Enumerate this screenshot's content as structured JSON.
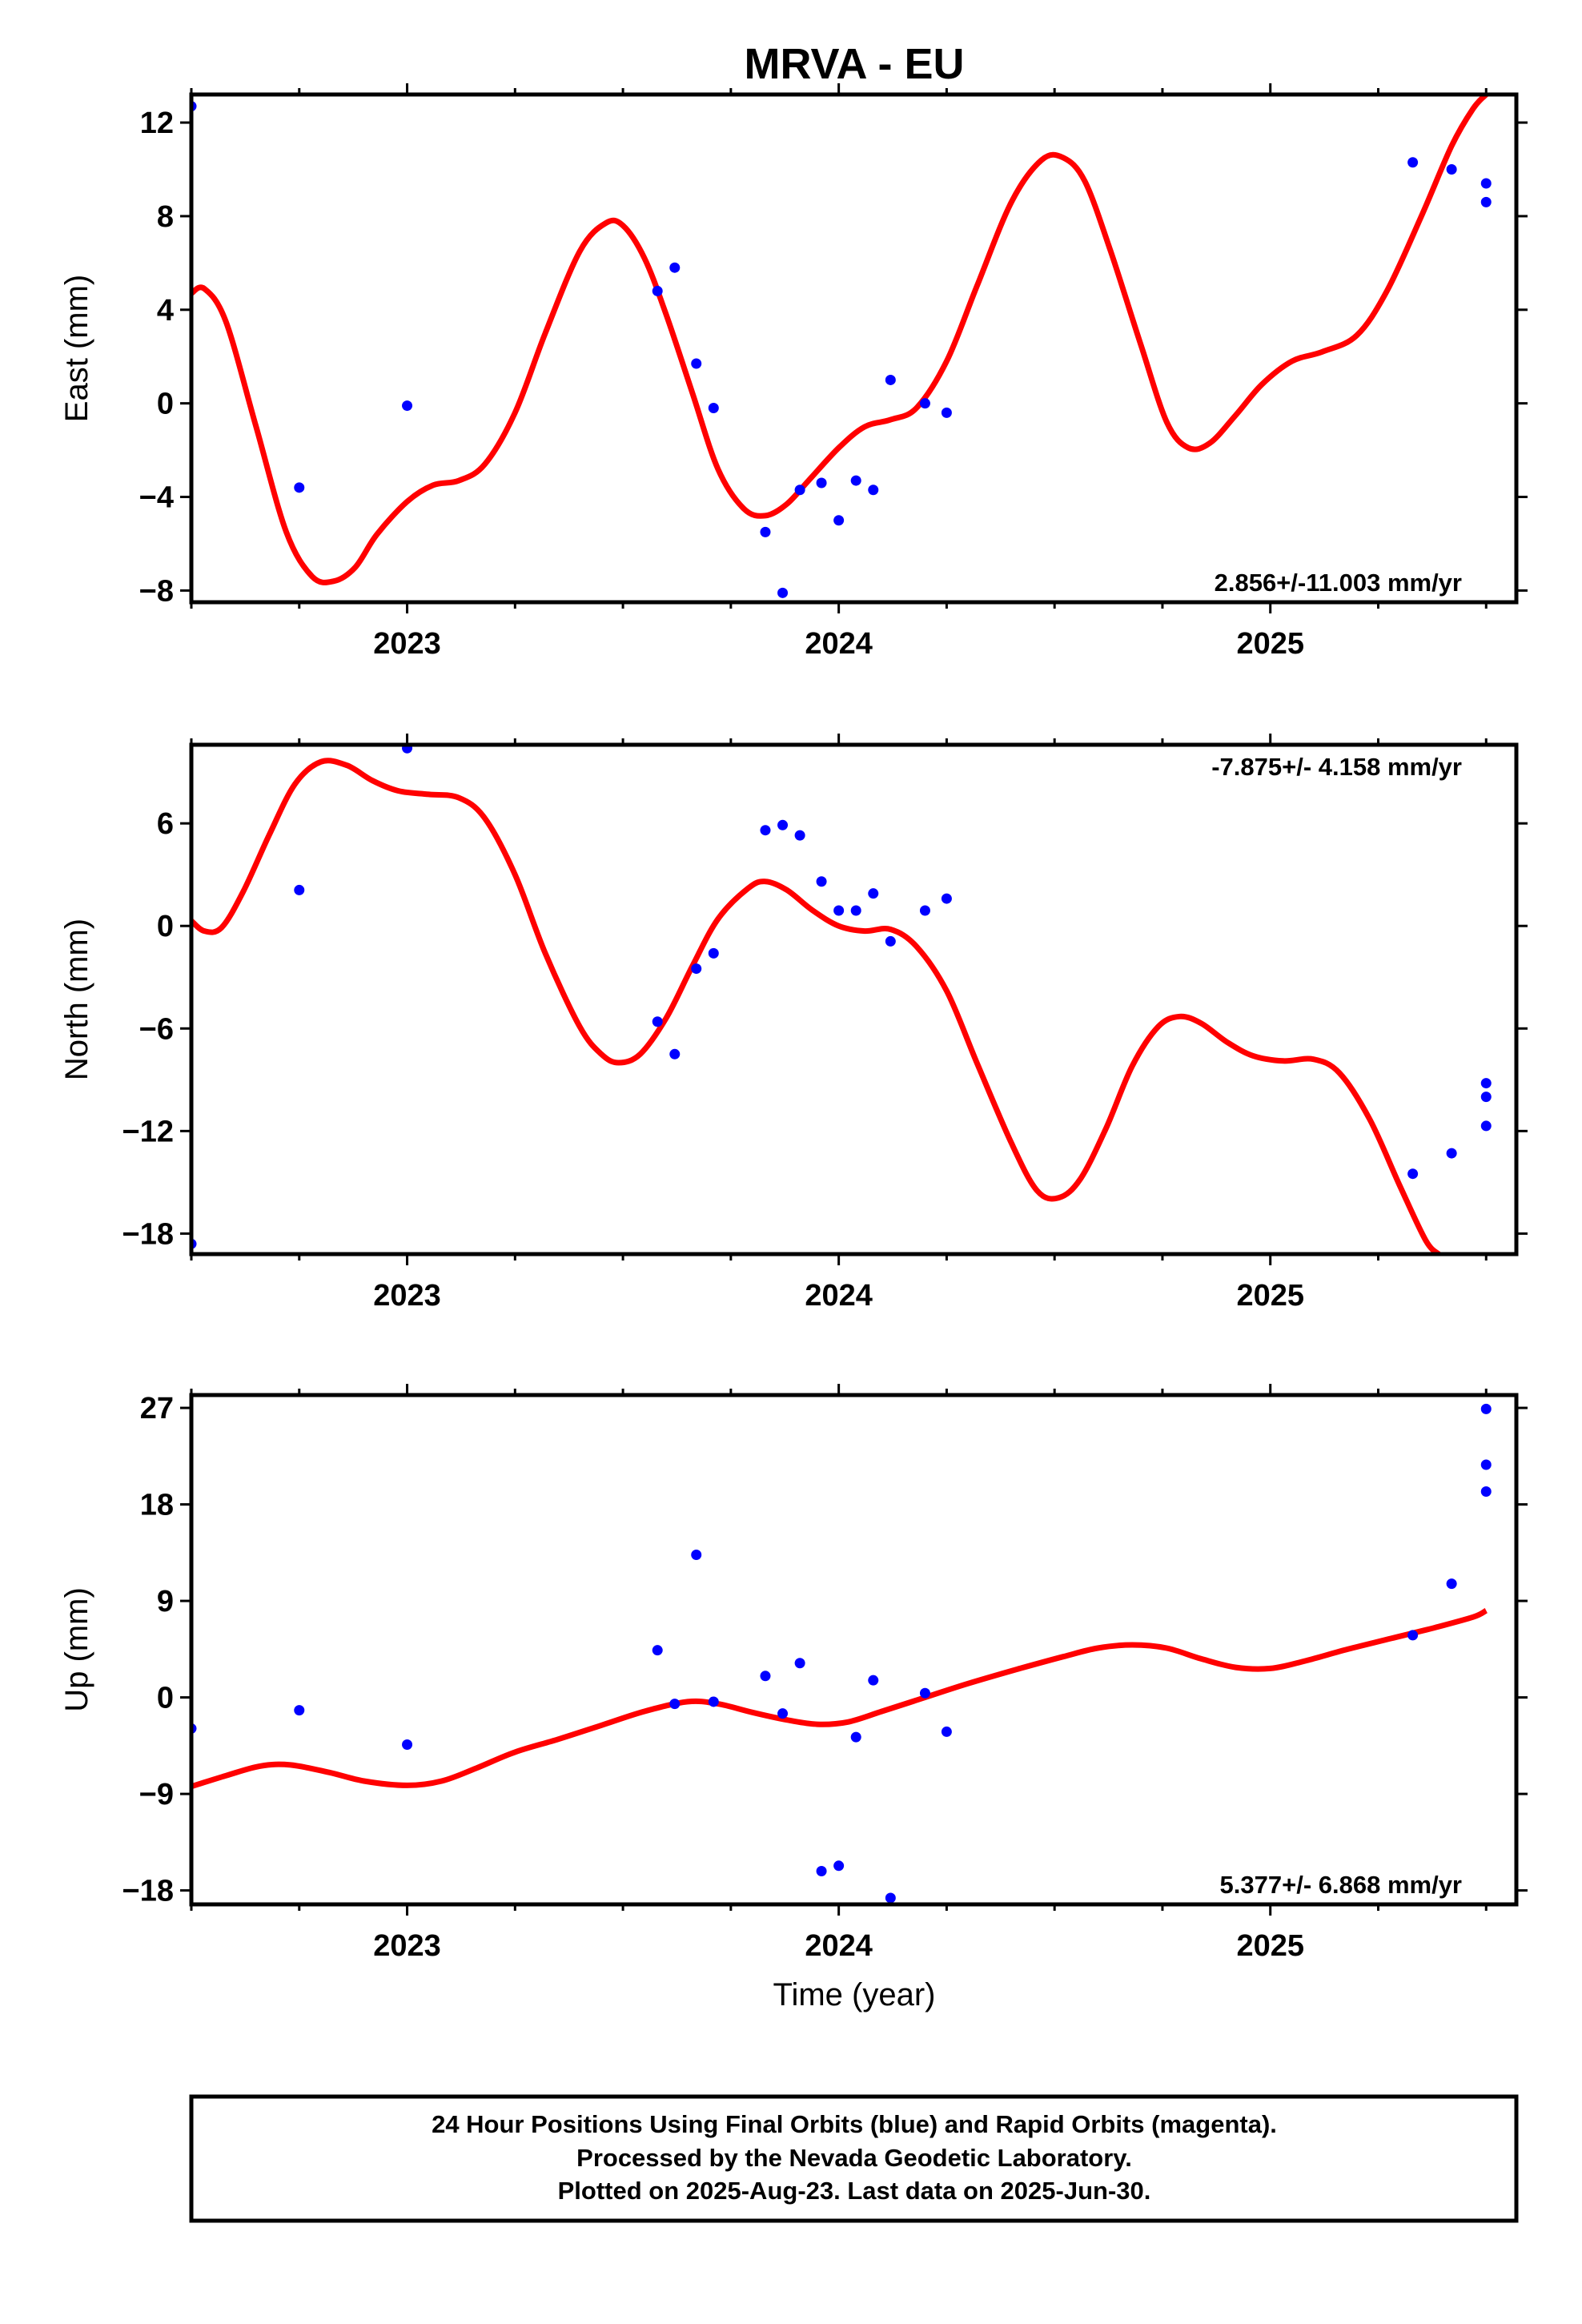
{
  "title": "MRVA - EU",
  "xlabel": "Time (year)",
  "footer": [
    "24 Hour Positions Using Final Orbits (blue) and Rapid Orbits (magenta).",
    "Processed by the Nevada Geodetic Laboratory.",
    "Plotted on 2025-Aug-23. Last data on 2025-Jun-30."
  ],
  "colors": {
    "points": "#0000ff",
    "fit": "#ff0000",
    "frame": "#000000"
  },
  "chart_data": [
    {
      "type": "scatter",
      "ylabel": "East (mm)",
      "rate_text": "2.856+/-11.003 mm/yr",
      "xlim": [
        2022.5,
        2025.57
      ],
      "ylim": [
        -8.5,
        13.2
      ],
      "yticks": [
        12,
        8,
        4,
        0,
        -4,
        -8
      ],
      "ytick_labels": [
        "12",
        "8",
        "4",
        "0",
        "−4",
        "−8"
      ],
      "xticks": [
        2023,
        2024,
        2025
      ],
      "xtick_labels": [
        "2023",
        "2024",
        "2025"
      ],
      "points": [
        [
          2022.5,
          12.7
        ],
        [
          2022.75,
          -3.6
        ],
        [
          2023.0,
          -0.1
        ],
        [
          2023.58,
          4.8
        ],
        [
          2023.62,
          5.8
        ],
        [
          2023.67,
          1.7
        ],
        [
          2023.71,
          -0.2
        ],
        [
          2023.83,
          -5.5
        ],
        [
          2023.87,
          -8.1
        ],
        [
          2023.91,
          -3.7
        ],
        [
          2023.96,
          -3.4
        ],
        [
          2024.0,
          -5.0
        ],
        [
          2024.04,
          -3.3
        ],
        [
          2024.08,
          -3.7
        ],
        [
          2024.12,
          1.0
        ],
        [
          2024.2,
          0.0
        ],
        [
          2024.25,
          -0.4
        ],
        [
          2025.33,
          10.3
        ],
        [
          2025.42,
          10.0
        ],
        [
          2025.5,
          9.4
        ],
        [
          2025.5,
          8.6
        ]
      ],
      "fit": [
        [
          2022.5,
          4.7
        ],
        [
          2022.53,
          4.9
        ],
        [
          2022.58,
          3.5
        ],
        [
          2022.65,
          -1.0
        ],
        [
          2022.72,
          -5.5
        ],
        [
          2022.78,
          -7.4
        ],
        [
          2022.83,
          -7.6
        ],
        [
          2022.88,
          -7.0
        ],
        [
          2022.93,
          -5.6
        ],
        [
          2023.0,
          -4.2
        ],
        [
          2023.06,
          -3.5
        ],
        [
          2023.12,
          -3.3
        ],
        [
          2023.18,
          -2.6
        ],
        [
          2023.25,
          -0.4
        ],
        [
          2023.32,
          3.0
        ],
        [
          2023.4,
          6.5
        ],
        [
          2023.46,
          7.7
        ],
        [
          2023.5,
          7.6
        ],
        [
          2023.55,
          6.2
        ],
        [
          2023.6,
          3.8
        ],
        [
          2023.66,
          0.5
        ],
        [
          2023.72,
          -2.8
        ],
        [
          2023.78,
          -4.5
        ],
        [
          2023.83,
          -4.8
        ],
        [
          2023.88,
          -4.3
        ],
        [
          2023.93,
          -3.3
        ],
        [
          2024.0,
          -1.9
        ],
        [
          2024.06,
          -1.0
        ],
        [
          2024.12,
          -0.7
        ],
        [
          2024.18,
          -0.2
        ],
        [
          2024.25,
          1.8
        ],
        [
          2024.32,
          5.0
        ],
        [
          2024.4,
          8.6
        ],
        [
          2024.47,
          10.4
        ],
        [
          2024.52,
          10.5
        ],
        [
          2024.57,
          9.5
        ],
        [
          2024.63,
          6.5
        ],
        [
          2024.7,
          2.5
        ],
        [
          2024.76,
          -0.8
        ],
        [
          2024.81,
          -1.9
        ],
        [
          2024.86,
          -1.7
        ],
        [
          2024.92,
          -0.5
        ],
        [
          2024.98,
          0.8
        ],
        [
          2025.05,
          1.8
        ],
        [
          2025.12,
          2.2
        ],
        [
          2025.2,
          2.9
        ],
        [
          2025.27,
          4.8
        ],
        [
          2025.35,
          8.0
        ],
        [
          2025.42,
          11.0
        ],
        [
          2025.47,
          12.6
        ],
        [
          2025.5,
          13.2
        ]
      ]
    },
    {
      "type": "scatter",
      "ylabel": "North (mm)",
      "rate_text": "-7.875+/- 4.158 mm/yr",
      "xlim": [
        2022.5,
        2025.57
      ],
      "ylim": [
        -19.2,
        10.6
      ],
      "yticks": [
        6,
        0,
        -6,
        -12,
        -18
      ],
      "ytick_labels": [
        "6",
        "0",
        "−6",
        "−12",
        "−18"
      ],
      "xticks": [
        2023,
        2024,
        2025
      ],
      "xtick_labels": [
        "2023",
        "2024",
        "2025"
      ],
      "points": [
        [
          2022.5,
          -18.6
        ],
        [
          2022.75,
          2.1
        ],
        [
          2023.0,
          10.4
        ],
        [
          2023.58,
          -5.6
        ],
        [
          2023.62,
          -7.5
        ],
        [
          2023.67,
          -2.5
        ],
        [
          2023.71,
          -1.6
        ],
        [
          2023.83,
          5.6
        ],
        [
          2023.87,
          5.9
        ],
        [
          2023.91,
          5.3
        ],
        [
          2023.96,
          2.6
        ],
        [
          2024.0,
          0.9
        ],
        [
          2024.04,
          0.9
        ],
        [
          2024.08,
          1.9
        ],
        [
          2024.12,
          -0.9
        ],
        [
          2024.2,
          0.9
        ],
        [
          2024.25,
          1.6
        ],
        [
          2025.33,
          -14.5
        ],
        [
          2025.42,
          -13.3
        ],
        [
          2025.5,
          -11.7
        ],
        [
          2025.5,
          -10.0
        ],
        [
          2025.5,
          -9.2
        ]
      ],
      "fit": [
        [
          2022.5,
          0.3
        ],
        [
          2022.53,
          -0.3
        ],
        [
          2022.57,
          -0.1
        ],
        [
          2022.62,
          2.0
        ],
        [
          2022.68,
          5.3
        ],
        [
          2022.74,
          8.3
        ],
        [
          2022.8,
          9.6
        ],
        [
          2022.86,
          9.4
        ],
        [
          2022.92,
          8.5
        ],
        [
          2022.98,
          7.9
        ],
        [
          2023.05,
          7.7
        ],
        [
          2023.12,
          7.5
        ],
        [
          2023.18,
          6.3
        ],
        [
          2023.25,
          3.0
        ],
        [
          2023.32,
          -1.6
        ],
        [
          2023.4,
          -5.9
        ],
        [
          2023.45,
          -7.5
        ],
        [
          2023.49,
          -8.0
        ],
        [
          2023.54,
          -7.5
        ],
        [
          2023.6,
          -5.4
        ],
        [
          2023.66,
          -2.4
        ],
        [
          2023.72,
          0.4
        ],
        [
          2023.79,
          2.2
        ],
        [
          2023.83,
          2.6
        ],
        [
          2023.88,
          2.1
        ],
        [
          2023.94,
          0.9
        ],
        [
          2024.0,
          0.0
        ],
        [
          2024.06,
          -0.3
        ],
        [
          2024.12,
          -0.2
        ],
        [
          2024.18,
          -1.2
        ],
        [
          2024.25,
          -3.8
        ],
        [
          2024.32,
          -8.0
        ],
        [
          2024.4,
          -12.7
        ],
        [
          2024.46,
          -15.5
        ],
        [
          2024.51,
          -15.9
        ],
        [
          2024.56,
          -14.8
        ],
        [
          2024.62,
          -11.8
        ],
        [
          2024.68,
          -8.2
        ],
        [
          2024.74,
          -5.9
        ],
        [
          2024.79,
          -5.3
        ],
        [
          2024.84,
          -5.7
        ],
        [
          2024.9,
          -6.8
        ],
        [
          2024.96,
          -7.6
        ],
        [
          2025.03,
          -7.9
        ],
        [
          2025.1,
          -7.8
        ],
        [
          2025.16,
          -8.6
        ],
        [
          2025.23,
          -11.3
        ],
        [
          2025.3,
          -15.2
        ],
        [
          2025.36,
          -18.4
        ],
        [
          2025.39,
          -19.2
        ]
      ]
    },
    {
      "type": "scatter",
      "ylabel": "Up (mm)",
      "rate_text": "5.377+/- 6.868 mm/yr",
      "xlim": [
        2022.5,
        2025.57
      ],
      "ylim": [
        -19.3,
        28.2
      ],
      "yticks": [
        27,
        18,
        9,
        0,
        -9,
        -18
      ],
      "ytick_labels": [
        "27",
        "18",
        "9",
        "0",
        "−9",
        "−18"
      ],
      "xticks": [
        2023,
        2024,
        2025
      ],
      "xtick_labels": [
        "2023",
        "2024",
        "2025"
      ],
      "points": [
        [
          2022.5,
          -2.9
        ],
        [
          2022.75,
          -1.2
        ],
        [
          2023.0,
          -4.4
        ],
        [
          2023.58,
          4.4
        ],
        [
          2023.62,
          -0.6
        ],
        [
          2023.67,
          13.3
        ],
        [
          2023.71,
          -0.4
        ],
        [
          2023.83,
          2.0
        ],
        [
          2023.87,
          -1.5
        ],
        [
          2023.91,
          3.2
        ],
        [
          2023.96,
          -16.2
        ],
        [
          2024.0,
          -15.7
        ],
        [
          2024.04,
          -3.7
        ],
        [
          2024.08,
          1.6
        ],
        [
          2024.12,
          -18.7
        ],
        [
          2024.2,
          0.4
        ],
        [
          2024.25,
          -3.2
        ],
        [
          2025.33,
          5.8
        ],
        [
          2025.42,
          10.6
        ],
        [
          2025.5,
          26.9
        ],
        [
          2025.5,
          21.7
        ],
        [
          2025.5,
          19.2
        ]
      ],
      "fit": [
        [
          2022.5,
          -8.3
        ],
        [
          2022.58,
          -7.3
        ],
        [
          2022.66,
          -6.4
        ],
        [
          2022.73,
          -6.3
        ],
        [
          2022.82,
          -7.0
        ],
        [
          2022.9,
          -7.8
        ],
        [
          2023.0,
          -8.2
        ],
        [
          2023.08,
          -7.8
        ],
        [
          2023.16,
          -6.6
        ],
        [
          2023.25,
          -5.1
        ],
        [
          2023.35,
          -3.9
        ],
        [
          2023.45,
          -2.6
        ],
        [
          2023.55,
          -1.3
        ],
        [
          2023.65,
          -0.4
        ],
        [
          2023.72,
          -0.6
        ],
        [
          2023.8,
          -1.4
        ],
        [
          2023.88,
          -2.1
        ],
        [
          2023.95,
          -2.5
        ],
        [
          2024.02,
          -2.3
        ],
        [
          2024.1,
          -1.3
        ],
        [
          2024.2,
          0.0
        ],
        [
          2024.3,
          1.3
        ],
        [
          2024.42,
          2.7
        ],
        [
          2024.52,
          3.8
        ],
        [
          2024.6,
          4.6
        ],
        [
          2024.68,
          4.9
        ],
        [
          2024.76,
          4.6
        ],
        [
          2024.84,
          3.6
        ],
        [
          2024.92,
          2.8
        ],
        [
          2025.0,
          2.7
        ],
        [
          2025.08,
          3.4
        ],
        [
          2025.18,
          4.5
        ],
        [
          2025.28,
          5.5
        ],
        [
          2025.38,
          6.5
        ],
        [
          2025.47,
          7.5
        ],
        [
          2025.5,
          8.1
        ]
      ]
    }
  ]
}
